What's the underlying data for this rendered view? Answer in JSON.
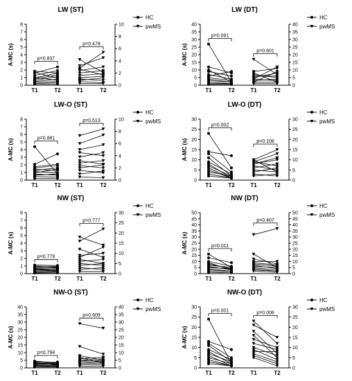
{
  "figure": {
    "ylabel": "A-MC (s)",
    "xcats": [
      "T1",
      "T2"
    ],
    "legend": [
      "HC",
      "pwMS"
    ]
  },
  "chart_data": [
    {
      "type": "line",
      "title": "LW (ST)",
      "ylabel": "A-MC (s)",
      "ylim": [
        0,
        10
      ],
      "yticks": [
        0,
        1,
        2,
        3,
        4,
        5,
        6,
        7,
        8
      ],
      "right_ticks": [
        0,
        2,
        4,
        6,
        8,
        10
      ],
      "categories": [
        "T1",
        "T2"
      ],
      "legend": [
        "HC",
        "pwMS"
      ],
      "legend_position": "top-right",
      "p_values": [
        "p=0.837",
        "p=0.478"
      ],
      "series": [
        {
          "name": "HC",
          "marker": "circle",
          "pairs": [
            [
              2.3,
              2.0
            ],
            [
              2.0,
              3.0
            ],
            [
              1.6,
              2.4
            ],
            [
              1.2,
              2.0
            ],
            [
              1.0,
              1.7
            ],
            [
              0.8,
              1.4
            ],
            [
              0.6,
              1.0
            ],
            [
              0.5,
              0.6
            ],
            [
              0.3,
              0.4
            ],
            [
              0.2,
              0.2
            ],
            [
              2.1,
              1.2
            ],
            [
              1.3,
              0.8
            ]
          ]
        },
        {
          "name": "pwMS",
          "marker": "triangle-down",
          "pairs": [
            [
              3.2,
              4.5
            ],
            [
              2.8,
              5.4
            ],
            [
              2.4,
              3.0
            ],
            [
              2.0,
              2.4
            ],
            [
              1.6,
              1.9
            ],
            [
              1.2,
              1.5
            ],
            [
              1.0,
              0.8
            ],
            [
              0.8,
              1.2
            ],
            [
              0.6,
              0.4
            ],
            [
              0.3,
              0.3
            ],
            [
              4.2,
              2.1
            ],
            [
              2.6,
              1.7
            ]
          ]
        }
      ]
    },
    {
      "type": "line",
      "title": "LW (DT)",
      "ylabel": "A-MC (s)",
      "ylim": [
        0,
        40
      ],
      "yticks": [
        0,
        5,
        10,
        15,
        20,
        25,
        30,
        35,
        40
      ],
      "right_ticks": [
        0,
        5,
        10,
        15,
        20,
        25,
        30,
        35,
        40
      ],
      "categories": [
        "T1",
        "T2"
      ],
      "legend": [
        "HC",
        "pwMS"
      ],
      "legend_position": "top-right",
      "p_values": [
        "p=0.091",
        "p=0.601"
      ],
      "series": [
        {
          "name": "HC",
          "marker": "circle",
          "pairs": [
            [
              27,
              2
            ],
            [
              12,
              8
            ],
            [
              9,
              6
            ],
            [
              7,
              4
            ],
            [
              5,
              3
            ],
            [
              4,
              2
            ],
            [
              3,
              2
            ],
            [
              2,
              1
            ],
            [
              1,
              1
            ],
            [
              0.5,
              0.5
            ],
            [
              10,
              2
            ],
            [
              6,
              9
            ]
          ]
        },
        {
          "name": "pwMS",
          "marker": "triangle-down",
          "pairs": [
            [
              17,
              7
            ],
            [
              9,
              11
            ],
            [
              7,
              5
            ],
            [
              5,
              8
            ],
            [
              4,
              3
            ],
            [
              3,
              4
            ],
            [
              2,
              2
            ],
            [
              1,
              1
            ],
            [
              8,
              2
            ],
            [
              6,
              6
            ],
            [
              2,
              9
            ],
            [
              4,
              12
            ]
          ]
        }
      ]
    },
    {
      "type": "line",
      "title": "LW-O (ST)",
      "ylabel": "A-MC (s)",
      "ylim": [
        0,
        10
      ],
      "yticks": [
        0,
        1,
        2,
        3,
        4,
        5,
        6,
        7,
        8
      ],
      "right_ticks": [
        0,
        2,
        4,
        6,
        8,
        10
      ],
      "categories": [
        "T1",
        "T2"
      ],
      "legend": [
        "HC",
        "pwMS"
      ],
      "legend_position": "top-right",
      "p_values": [
        "p=0.881",
        "p=0.513"
      ],
      "series": [
        {
          "name": "HC",
          "marker": "circle",
          "pairs": [
            [
              5.5,
              1.0
            ],
            [
              2.6,
              4.3
            ],
            [
              2.2,
              2.6
            ],
            [
              2.0,
              2.4
            ],
            [
              1.8,
              1.6
            ],
            [
              1.6,
              2.0
            ],
            [
              1.4,
              1.2
            ],
            [
              1.2,
              1.8
            ],
            [
              1.0,
              0.8
            ],
            [
              0.8,
              1.0
            ],
            [
              0.6,
              0.5
            ],
            [
              0.3,
              0.3
            ]
          ]
        },
        {
          "name": "pwMS",
          "marker": "triangle-down",
          "pairs": [
            [
              7.3,
              8.4
            ],
            [
              6.0,
              7.4
            ],
            [
              5.0,
              5.8
            ],
            [
              4.5,
              4.0
            ],
            [
              3.8,
              4.5
            ],
            [
              3.2,
              2.6
            ],
            [
              2.8,
              3.2
            ],
            [
              2.4,
              2.0
            ],
            [
              2.0,
              2.5
            ],
            [
              1.6,
              1.2
            ],
            [
              1.0,
              1.5
            ],
            [
              0.5,
              0.4
            ]
          ]
        }
      ]
    },
    {
      "type": "line",
      "title": "LW-O (DT)",
      "ylabel": "A-MC (s)",
      "ylim": [
        0,
        30
      ],
      "yticks": [
        0,
        5,
        10,
        15,
        20,
        25,
        30
      ],
      "right_ticks": [
        0,
        5,
        10,
        15,
        20,
        25,
        30
      ],
      "categories": [
        "T1",
        "T2"
      ],
      "legend": [
        "HC",
        "pwMS"
      ],
      "legend_position": "top-right",
      "p_values": [
        "p=0.002",
        "p=0.108"
      ],
      "series": [
        {
          "name": "HC",
          "marker": "circle",
          "pairs": [
            [
              23,
              6
            ],
            [
              14,
              12
            ],
            [
              13,
              4
            ],
            [
              11,
              2
            ],
            [
              9,
              3
            ],
            [
              8,
              1
            ],
            [
              7,
              2
            ],
            [
              6,
              1
            ],
            [
              5,
              1
            ],
            [
              4,
              2
            ],
            [
              3,
              1
            ],
            [
              2,
              1
            ]
          ]
        },
        {
          "name": "pwMS",
          "marker": "triangle-down",
          "pairs": [
            [
              10,
              15
            ],
            [
              9,
              13
            ],
            [
              9,
              7
            ],
            [
              8,
              11
            ],
            [
              7,
              5
            ],
            [
              6,
              8
            ],
            [
              5,
              4
            ],
            [
              4,
              6
            ],
            [
              3,
              2
            ],
            [
              2,
              3
            ],
            [
              8,
              10
            ],
            [
              10,
              4
            ]
          ]
        }
      ]
    },
    {
      "type": "line",
      "title": "NW (ST)",
      "ylabel": "A-MC (s)",
      "ylim": [
        0,
        30
      ],
      "yticks": [
        0,
        1,
        2,
        3,
        4,
        5,
        6,
        7,
        8
      ],
      "right_ticks": [
        0,
        5,
        10,
        15,
        20,
        25,
        30
      ],
      "categories": [
        "T1",
        "T2"
      ],
      "legend": [
        "HC",
        "pwMS"
      ],
      "legend_position": "top-right",
      "p_values": [
        "p=0.779",
        "p=0.777"
      ],
      "series": [
        {
          "name": "HC",
          "marker": "circle",
          "pairs": [
            [
              4.2,
              4.0
            ],
            [
              3.8,
              3.2
            ],
            [
              3.4,
              3.6
            ],
            [
              3.0,
              2.8
            ],
            [
              2.6,
              3.0
            ],
            [
              2.2,
              2.4
            ],
            [
              1.8,
              2.0
            ],
            [
              1.4,
              1.6
            ],
            [
              1.0,
              1.2
            ],
            [
              0.6,
              0.8
            ],
            [
              0.3,
              0.4
            ],
            [
              2.4,
              1.2
            ]
          ]
        },
        {
          "name": "pwMS",
          "marker": "triangle-down",
          "pairs": [
            [
              18,
              14
            ],
            [
              16,
              22
            ],
            [
              12,
              8
            ],
            [
              9,
              10
            ],
            [
              7,
              5
            ],
            [
              6,
              7
            ],
            [
              5,
              4
            ],
            [
              4,
              5
            ],
            [
              3,
              2
            ],
            [
              2,
              3
            ],
            [
              1,
              1
            ],
            [
              8,
              13
            ]
          ]
        }
      ]
    },
    {
      "type": "line",
      "title": "NW (DT)",
      "ylabel": "A-MC (s)",
      "ylim": [
        0,
        50
      ],
      "yticks": [
        0,
        5,
        10,
        15,
        20,
        25,
        30,
        35,
        40,
        45,
        50
      ],
      "right_ticks": [
        0,
        5,
        10,
        15,
        20,
        25,
        30,
        35,
        40,
        45,
        50
      ],
      "categories": [
        "T1",
        "T2"
      ],
      "legend": [
        "HC",
        "pwMS"
      ],
      "legend_position": "top-right",
      "p_values": [
        "p=0.011",
        "p=0.407"
      ],
      "series": [
        {
          "name": "HC",
          "marker": "circle",
          "pairs": [
            [
              16,
              5
            ],
            [
              13,
              9
            ],
            [
              10,
              6
            ],
            [
              8,
              4
            ],
            [
              7,
              5
            ],
            [
              6,
              3
            ],
            [
              5,
              4
            ],
            [
              4,
              2
            ],
            [
              3,
              2
            ],
            [
              2,
              1
            ],
            [
              1,
              1
            ],
            [
              9,
              3
            ]
          ]
        },
        {
          "name": "pwMS",
          "marker": "triangle-down",
          "pairs": [
            [
              32,
              37
            ],
            [
              16,
              5
            ],
            [
              12,
              8
            ],
            [
              10,
              10
            ],
            [
              8,
              6
            ],
            [
              7,
              4
            ],
            [
              6,
              5
            ],
            [
              5,
              3
            ],
            [
              4,
              2
            ],
            [
              3,
              2
            ],
            [
              2,
              1
            ],
            [
              9,
              7
            ]
          ]
        }
      ]
    },
    {
      "type": "line",
      "title": "NW-O (ST)",
      "ylabel": "A-MC (s)",
      "ylim": [
        0,
        40
      ],
      "yticks": [
        0,
        5,
        10,
        15,
        20,
        25,
        30,
        35,
        40
      ],
      "right_ticks": [
        0,
        5,
        10,
        15,
        20,
        25,
        30,
        35,
        40
      ],
      "categories": [
        "T1",
        "T2"
      ],
      "legend": [
        "HC",
        "pwMS"
      ],
      "legend_position": "top-right",
      "p_values": [
        "p=0.794",
        "p=0.609"
      ],
      "series": [
        {
          "name": "HC",
          "marker": "circle",
          "pairs": [
            [
              4.5,
              3.0
            ],
            [
              4.0,
              3.5
            ],
            [
              3.5,
              2.5
            ],
            [
              3.0,
              3.0
            ],
            [
              2.5,
              2.0
            ],
            [
              2.0,
              2.5
            ],
            [
              1.5,
              1.5
            ],
            [
              1.0,
              1.0
            ],
            [
              0.5,
              0.5
            ],
            [
              3.2,
              1.8
            ],
            [
              2.8,
              3.8
            ],
            [
              1.8,
              0.8
            ]
          ]
        },
        {
          "name": "pwMS",
          "marker": "triangle-down",
          "pairs": [
            [
              29,
              26
            ],
            [
              14,
              9
            ],
            [
              8,
              5
            ],
            [
              6,
              7
            ],
            [
              5,
              4
            ],
            [
              4,
              5
            ],
            [
              3,
              3
            ],
            [
              2,
              2
            ],
            [
              1,
              1
            ],
            [
              7,
              3
            ],
            [
              5,
              6
            ],
            [
              3,
              4
            ]
          ]
        }
      ]
    },
    {
      "type": "line",
      "title": "NW-O (DT)",
      "ylabel": "A-MC (s)",
      "ylim": [
        0,
        30
      ],
      "yticks": [
        0,
        5,
        10,
        15,
        20,
        25,
        30
      ],
      "right_ticks": [
        0,
        5,
        10,
        15,
        20,
        25,
        30
      ],
      "categories": [
        "T1",
        "T2"
      ],
      "legend": [
        "HC",
        "pwMS"
      ],
      "legend_position": "top-right",
      "p_values": [
        "p=0.001",
        "p=0.006"
      ],
      "series": [
        {
          "name": "HC",
          "marker": "circle",
          "pairs": [
            [
              24,
              2
            ],
            [
              13,
              9
            ],
            [
              12,
              5
            ],
            [
              11,
              3
            ],
            [
              9,
              4
            ],
            [
              8,
              2
            ],
            [
              7,
              3
            ],
            [
              6,
              1
            ],
            [
              5,
              2
            ],
            [
              4,
              1
            ],
            [
              3,
              1
            ],
            [
              2,
              1
            ]
          ]
        },
        {
          "name": "pwMS",
          "marker": "triangle-down",
          "pairs": [
            [
              23,
              12
            ],
            [
              21,
              15
            ],
            [
              18,
              7
            ],
            [
              16,
              5
            ],
            [
              14,
              10
            ],
            [
              12,
              9
            ],
            [
              10,
              6
            ],
            [
              9,
              4
            ],
            [
              8,
              8
            ],
            [
              7,
              3
            ],
            [
              6,
              2
            ],
            [
              5,
              1
            ]
          ]
        }
      ]
    }
  ]
}
